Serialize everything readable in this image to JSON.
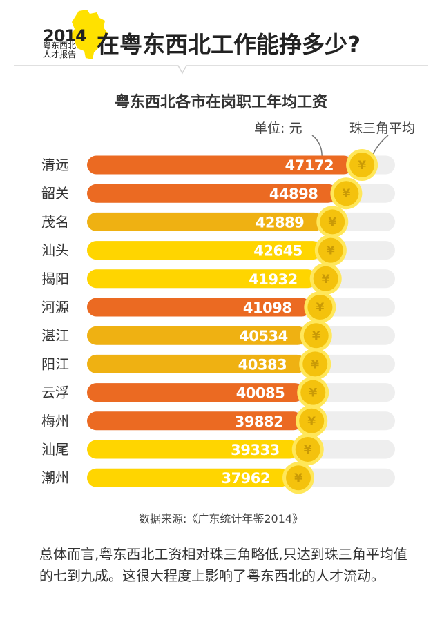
{
  "header": {
    "year": "2014",
    "logo_line1": "粤东西北",
    "logo_line2": "人才报告",
    "title": "在粤东西北工作能挣多少?"
  },
  "colors": {
    "orange": "#EB6A22",
    "gold": "#EFB112",
    "yellow": "#FFD500",
    "track": "#EEEEEE",
    "coin": "#F4C20D",
    "coin_ring": "#FFE75A",
    "coin_symbol": "#C99A06",
    "logo_yellow": "#FFE100"
  },
  "chart_data": {
    "type": "bar",
    "title": "粤东西北各市在岗职工年均工资",
    "unit_label": "单位: 元",
    "reference_label": "珠三角平均",
    "coin_symbol": "¥",
    "categories": [
      "清远",
      "韶关",
      "茂名",
      "汕头",
      "揭阳",
      "河源",
      "湛江",
      "阳江",
      "云浮",
      "梅州",
      "汕尾",
      "潮州"
    ],
    "values": [
      47172,
      44898,
      42889,
      42645,
      41932,
      41098,
      40534,
      40383,
      40085,
      39882,
      39333,
      37962
    ],
    "bar_colors": [
      "orange",
      "orange",
      "gold",
      "yellow",
      "yellow",
      "orange",
      "gold",
      "gold",
      "orange",
      "orange",
      "yellow",
      "yellow"
    ]
  },
  "source": "数据来源:《广东统计年鉴2014》",
  "summary": "总体而言,粤东西北工资相对珠三角略低,只达到珠三角平均值的七到九成。这很大程度上影响了粤东西北的人才流动。"
}
